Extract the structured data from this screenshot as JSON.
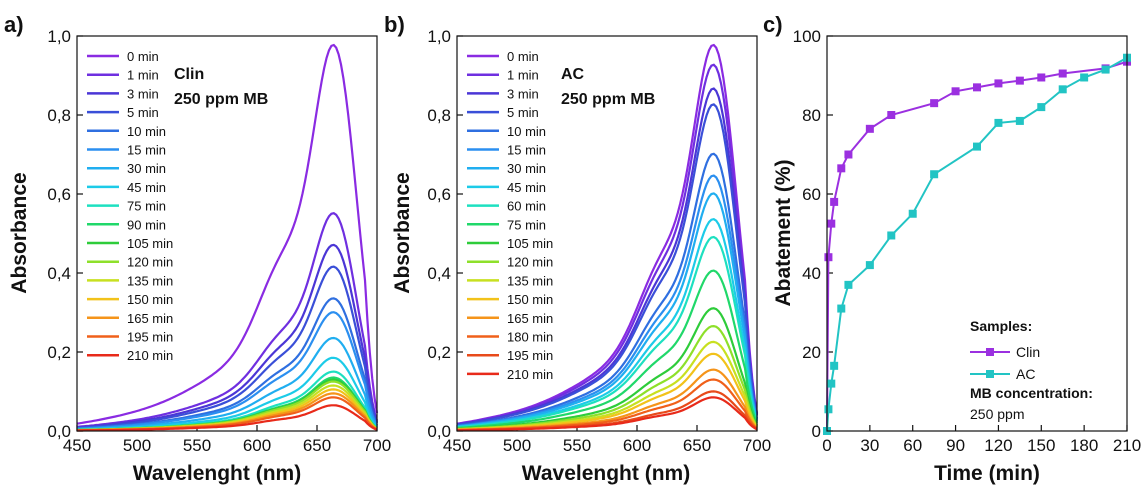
{
  "chart_data": [
    {
      "type": "line",
      "panel_label": "a)",
      "xlabel": "Wavelenght (nm)",
      "ylabel": "Absorbance",
      "xlim": [
        450,
        700
      ],
      "ylim": [
        0,
        1.0
      ],
      "xticks": [
        "450",
        "500",
        "550",
        "600",
        "650",
        "700"
      ],
      "yticks": [
        "0,0",
        "0,2",
        "0,4",
        "0,6",
        "0,8",
        "1,0"
      ],
      "annotation": [
        "Clin",
        "250 ppm MB"
      ],
      "legend_position": "top-left",
      "series": [
        {
          "name": "0 min",
          "color": "#8a2be2",
          "peak": 0.975
        },
        {
          "name": "1 min",
          "color": "#6f2fe0",
          "peak": 0.55
        },
        {
          "name": "3 min",
          "color": "#4b36d6",
          "peak": 0.47
        },
        {
          "name": "5 min",
          "color": "#3a4fd8",
          "peak": 0.415
        },
        {
          "name": "10 min",
          "color": "#2f6fe0",
          "peak": 0.335
        },
        {
          "name": "15 min",
          "color": "#2b8ff0",
          "peak": 0.3
        },
        {
          "name": "30 min",
          "color": "#20aef0",
          "peak": 0.235
        },
        {
          "name": "45 min",
          "color": "#1ccbe8",
          "peak": 0.185
        },
        {
          "name": "75 min",
          "color": "#1de0c0",
          "peak": 0.15
        },
        {
          "name": "90 min",
          "color": "#20d86a",
          "peak": 0.135
        },
        {
          "name": "105 min",
          "color": "#2ecc3a",
          "peak": 0.13
        },
        {
          "name": "120 min",
          "color": "#8ee02a",
          "peak": 0.125
        },
        {
          "name": "135 min",
          "color": "#c8e020",
          "peak": 0.115
        },
        {
          "name": "150 min",
          "color": "#f2c21a",
          "peak": 0.105
        },
        {
          "name": "165 min",
          "color": "#f5941a",
          "peak": 0.095
        },
        {
          "name": "195 min",
          "color": "#f0601a",
          "peak": 0.085
        },
        {
          "name": "210 min",
          "color": "#e82a1a",
          "peak": 0.065
        }
      ]
    },
    {
      "type": "line",
      "panel_label": "b)",
      "xlabel": "Wavelenght (nm)",
      "ylabel": "Absorbance",
      "xlim": [
        450,
        700
      ],
      "ylim": [
        0,
        1.0
      ],
      "xticks": [
        "450",
        "500",
        "550",
        "600",
        "650",
        "700"
      ],
      "yticks": [
        "0,0",
        "0,2",
        "0,4",
        "0,6",
        "0,8",
        "1,0"
      ],
      "annotation": [
        "AC",
        "250 ppm MB"
      ],
      "legend_position": "top-left",
      "series": [
        {
          "name": "0 min",
          "color": "#8a2be2",
          "peak": 0.975
        },
        {
          "name": "1 min",
          "color": "#6f2fe0",
          "peak": 0.925
        },
        {
          "name": "3 min",
          "color": "#4b36d6",
          "peak": 0.865
        },
        {
          "name": "5 min",
          "color": "#3a4fd8",
          "peak": 0.825
        },
        {
          "name": "10 min",
          "color": "#2f6fe0",
          "peak": 0.7
        },
        {
          "name": "15 min",
          "color": "#2b8ff0",
          "peak": 0.645
        },
        {
          "name": "30 min",
          "color": "#20aef0",
          "peak": 0.6
        },
        {
          "name": "45 min",
          "color": "#1ccbe8",
          "peak": 0.535
        },
        {
          "name": "60 min",
          "color": "#1de0c0",
          "peak": 0.49
        },
        {
          "name": "75 min",
          "color": "#20d86a",
          "peak": 0.405
        },
        {
          "name": "105 min",
          "color": "#2ecc3a",
          "peak": 0.31
        },
        {
          "name": "120 min",
          "color": "#8ee02a",
          "peak": 0.265
        },
        {
          "name": "135 min",
          "color": "#c8e020",
          "peak": 0.225
        },
        {
          "name": "150 min",
          "color": "#f2c21a",
          "peak": 0.195
        },
        {
          "name": "165 min",
          "color": "#f5941a",
          "peak": 0.155
        },
        {
          "name": "180 min",
          "color": "#f0601a",
          "peak": 0.13
        },
        {
          "name": "195 min",
          "color": "#e84a1a",
          "peak": 0.1
        },
        {
          "name": "210 min",
          "color": "#e82a1a",
          "peak": 0.085
        }
      ]
    },
    {
      "type": "line",
      "panel_label": "c)",
      "xlabel": "Time (min)",
      "ylabel": "Abatement (%)",
      "xlim": [
        0,
        210
      ],
      "ylim": [
        0,
        100
      ],
      "xticks": [
        "0",
        "30",
        "60",
        "90",
        "120",
        "150",
        "180",
        "210"
      ],
      "yticks": [
        "0",
        "20",
        "40",
        "60",
        "80",
        "100"
      ],
      "legend_title": "Samples:",
      "legend_position": "bottom-right",
      "note_title": "MB concentration:",
      "note_value": "250 ppm",
      "series": [
        {
          "name": "Clin",
          "color": "#9b30e0",
          "x": [
            0,
            1,
            3,
            5,
            10,
            15,
            30,
            45,
            75,
            90,
            105,
            120,
            135,
            150,
            165,
            195,
            210
          ],
          "y": [
            0,
            44,
            52.5,
            58,
            66.5,
            70,
            76.5,
            80,
            83,
            86,
            87,
            88,
            88.7,
            89.5,
            90.5,
            91.8,
            93.5
          ]
        },
        {
          "name": "AC",
          "color": "#22c4c4",
          "x": [
            0,
            1,
            3,
            5,
            10,
            15,
            30,
            45,
            60,
            75,
            105,
            120,
            135,
            150,
            165,
            180,
            195,
            210
          ],
          "y": [
            0,
            5.5,
            12,
            16.5,
            31,
            37,
            42,
            49.5,
            55,
            65,
            72,
            78,
            78.5,
            82,
            86.5,
            89.5,
            91.5,
            94.5
          ]
        }
      ]
    }
  ]
}
